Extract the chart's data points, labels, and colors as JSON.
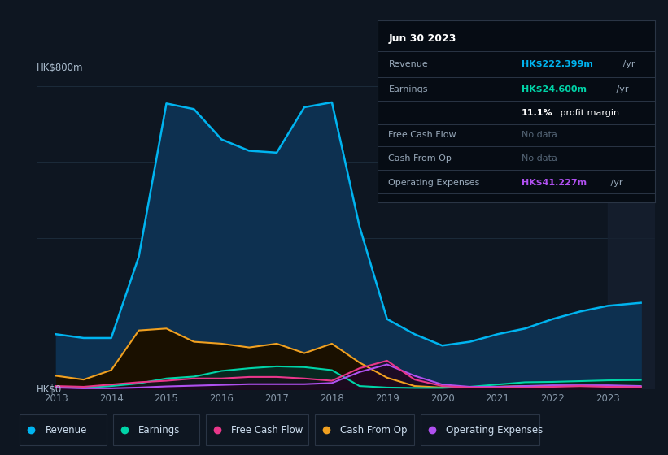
{
  "bg_color": "#0e1621",
  "chart_bg": "#0e1621",
  "grid_color": "#1c2b3a",
  "title_label": "HK$800m",
  "zero_label": "HK$0",
  "x_years": [
    2013,
    2013.5,
    2014,
    2014.5,
    2015,
    2015.5,
    2016,
    2016.5,
    2017,
    2017.5,
    2018,
    2018.5,
    2019,
    2019.5,
    2020,
    2020.5,
    2021,
    2021.5,
    2022,
    2022.5,
    2023,
    2023.6
  ],
  "revenue": [
    145,
    135,
    135,
    350,
    755,
    740,
    660,
    630,
    625,
    745,
    758,
    430,
    185,
    145,
    115,
    125,
    145,
    160,
    185,
    205,
    220,
    228
  ],
  "earnings": [
    5,
    3,
    8,
    15,
    28,
    33,
    48,
    55,
    60,
    58,
    50,
    8,
    4,
    3,
    3,
    6,
    12,
    18,
    19,
    21,
    23,
    24
  ],
  "free_cash_flow": [
    8,
    6,
    12,
    18,
    22,
    28,
    28,
    32,
    32,
    28,
    22,
    55,
    75,
    25,
    8,
    4,
    4,
    4,
    6,
    8,
    6,
    5
  ],
  "cash_from_op": [
    35,
    25,
    50,
    155,
    160,
    125,
    120,
    110,
    120,
    95,
    120,
    70,
    30,
    8,
    4,
    6,
    6,
    8,
    8,
    8,
    8,
    6
  ],
  "operating_expenses": [
    4,
    2,
    2,
    4,
    7,
    9,
    11,
    13,
    13,
    13,
    16,
    45,
    65,
    35,
    12,
    6,
    6,
    8,
    10,
    10,
    10,
    8
  ],
  "revenue_color": "#00b4f0",
  "earnings_color": "#00d4a8",
  "fcf_color": "#e8378a",
  "cashop_color": "#f0a020",
  "opex_color": "#b050f0",
  "revenue_fill": "#0d3050",
  "earnings_fill": "#0a3830",
  "cashop_fill": "#2a1800",
  "ylim": [
    0,
    830
  ],
  "xlim_start": 2012.65,
  "xlim_end": 2023.85,
  "xticks": [
    2013,
    2014,
    2015,
    2016,
    2017,
    2018,
    2019,
    2020,
    2021,
    2022,
    2023
  ],
  "info_box": {
    "date": "Jun 30 2023",
    "revenue_label": "Revenue",
    "revenue_value": "HK$222.399m",
    "revenue_unit": " /yr",
    "earnings_label": "Earnings",
    "earnings_value": "HK$24.600m",
    "earnings_unit": " /yr",
    "margin_pct": "11.1%",
    "margin_rest": " profit margin",
    "fcf_label": "Free Cash Flow",
    "fcf_value": "No data",
    "cashop_label": "Cash From Op",
    "cashop_value": "No data",
    "opex_label": "Operating Expenses",
    "opex_value": "HK$41.227m",
    "opex_unit": " /yr"
  },
  "legend_entries": [
    "Revenue",
    "Earnings",
    "Free Cash Flow",
    "Cash From Op",
    "Operating Expenses"
  ],
  "legend_colors": [
    "#00b4f0",
    "#00d4a8",
    "#e8378a",
    "#f0a020",
    "#b050f0"
  ]
}
